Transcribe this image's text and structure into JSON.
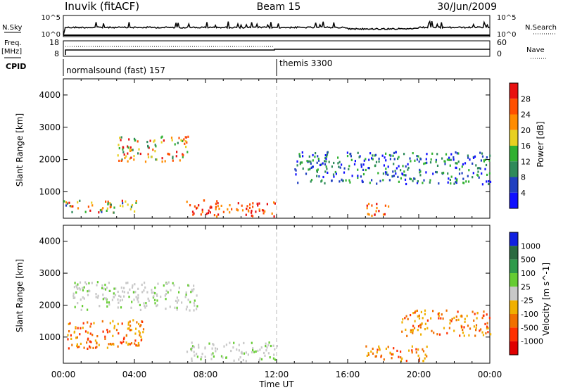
{
  "header": {
    "title": "Inuvik (fitACF)",
    "beam": "Beam 15",
    "date": "30/Jun/2009"
  },
  "noise_panel": {
    "left_label": "N.Sky",
    "right_label": "N.Search",
    "left_ticks": [
      "10^5",
      "10^0"
    ],
    "right_ticks": [
      "10^5",
      "10^0"
    ]
  },
  "freq_panel": {
    "left_label_1": "Freq.",
    "left_label_2": "[MHz]",
    "right_label": "Nave",
    "left_ticks": [
      "18",
      "8"
    ],
    "right_ticks": [
      "60",
      "0"
    ]
  },
  "cpid": {
    "label": "CPID",
    "modes": [
      {
        "name": "normalsound (fast) 157",
        "start_hour": 0
      },
      {
        "name": "themis 3300",
        "start_hour": 12
      }
    ]
  },
  "x_axis": {
    "label": "Time UT",
    "ticks": [
      "00:00",
      "04:00",
      "08:00",
      "12:00",
      "16:00",
      "20:00",
      "00:00"
    ]
  },
  "chart_data": [
    {
      "type": "heatmap",
      "title": "",
      "xlabel": "Time UT",
      "ylabel": "Slant Range [km]",
      "ylim": [
        180,
        4500
      ],
      "yticks": [
        1000,
        2000,
        3000,
        4000
      ],
      "x_hours": [
        0,
        24
      ],
      "colorbar": {
        "label": "Power [dB]",
        "ticks": [
          4,
          8,
          12,
          16,
          20,
          24,
          28
        ],
        "colors": [
          "#1010ff",
          "#2040c0",
          "#2e8a5a",
          "#30b030",
          "#e8d020",
          "#ff8c00",
          "#ff5000",
          "#e81010"
        ]
      },
      "regions": [
        {
          "t0": 0.0,
          "t1": 4.2,
          "r0": 300,
          "r1": 700,
          "level": "mixed"
        },
        {
          "t0": 3.0,
          "t1": 7.0,
          "r0": 1900,
          "r1": 2700,
          "level": "high"
        },
        {
          "t0": 6.9,
          "t1": 11.9,
          "r0": 200,
          "r1": 700,
          "level": "very-high"
        },
        {
          "t0": 17.0,
          "t1": 18.3,
          "r0": 200,
          "r1": 650,
          "level": "very-high"
        },
        {
          "t0": 13.0,
          "t1": 24.0,
          "r0": 1200,
          "r1": 2200,
          "level": "low"
        }
      ]
    },
    {
      "type": "heatmap",
      "title": "",
      "xlabel": "Time UT",
      "ylabel": "Slant Range [km]",
      "ylim": [
        180,
        4500
      ],
      "yticks": [
        1000,
        2000,
        3000,
        4000
      ],
      "x_hours": [
        0,
        24
      ],
      "colorbar": {
        "label": "Velocity [m s^-1]",
        "ticks": [
          "1000",
          "500",
          "100",
          "25",
          "-25",
          "-100",
          "-500",
          "-1000"
        ],
        "colors": [
          "#1020e0",
          "#2a6a40",
          "#2e9a4a",
          "#66cc33",
          "#c8c8c8",
          "#f0b000",
          "#f07000",
          "#ff3000",
          "#e00000"
        ]
      },
      "regions": [
        {
          "t0": 0.5,
          "t1": 7.5,
          "r0": 1800,
          "r1": 2700,
          "level": "near-zero"
        },
        {
          "t0": 0.0,
          "t1": 4.5,
          "r0": 600,
          "r1": 1500,
          "level": "negative"
        },
        {
          "t0": 6.9,
          "t1": 12.0,
          "r0": 200,
          "r1": 800,
          "level": "near-zero"
        },
        {
          "t0": 17.0,
          "t1": 20.5,
          "r0": 200,
          "r1": 700,
          "level": "negative"
        },
        {
          "t0": 19.0,
          "t1": 24.0,
          "r0": 1000,
          "r1": 1800,
          "level": "negative"
        }
      ]
    }
  ]
}
